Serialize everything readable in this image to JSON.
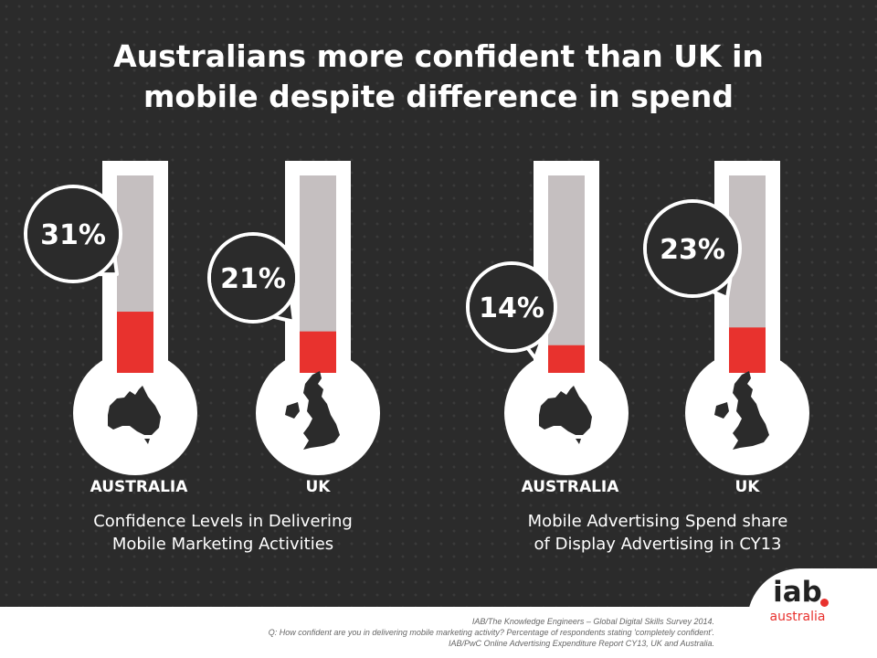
{
  "title": {
    "line1": "Australians more confident than UK in",
    "line2": "mobile despite difference in spend"
  },
  "chart_data": [
    {
      "type": "bar",
      "subtitle_line1": "Confidence Levels in Delivering",
      "subtitle_line2": "Mobile Marketing Activities",
      "categories": [
        "AUSTRALIA",
        "UK"
      ],
      "values": [
        31,
        21
      ],
      "value_labels": [
        "31%",
        "21%"
      ],
      "ylim": [
        0,
        100
      ]
    },
    {
      "type": "bar",
      "subtitle_line1": "Mobile Advertising Spend share",
      "subtitle_line2": "of Display Advertising  in CY13",
      "categories": [
        "AUSTRALIA",
        "UK"
      ],
      "values": [
        14,
        23
      ],
      "value_labels": [
        "14%",
        "23%"
      ],
      "ylim": [
        0,
        100
      ]
    }
  ],
  "colors": {
    "fill": "#e8322e",
    "tube": "#c5bfc0",
    "background": "#2b2b2b",
    "bubble": "#2b2b2b",
    "white": "#ffffff"
  },
  "icons": [
    "australia-map-icon",
    "uk-map-icon"
  ],
  "footer": {
    "source_1": "IAB/The Knowledge Engineers – Global Digital Skills Survey 2014.",
    "source_2": "Q: How confident are you in delivering mobile marketing activity? Percentage of respondents stating 'completely confident'.",
    "source_3": "IAB/PwC Online Advertising Expenditure Report CY13, UK and Australia."
  },
  "logo": {
    "main": "iab",
    "sub": "australia"
  }
}
